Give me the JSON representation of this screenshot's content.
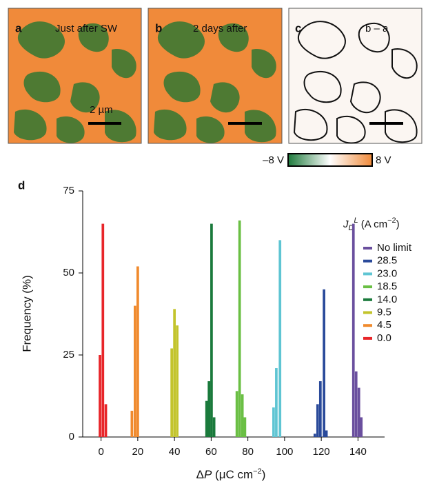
{
  "panels": [
    {
      "label": "a",
      "caption": "Just after SW",
      "scale_bar": "2 µm"
    },
    {
      "label": "b",
      "caption": "2 days after"
    },
    {
      "label": "c",
      "caption": "b – a"
    }
  ],
  "colorbar": {
    "min_label": "–8 V",
    "max_label": "8 V"
  },
  "chart_data": {
    "type": "bar",
    "panel_label": "d",
    "ylabel": "Frequency (%)",
    "xlabel": [
      "Δ",
      "P",
      " (μC cm",
      "−2",
      ")"
    ],
    "legend_title": [
      "J",
      "D",
      "L",
      " (A cm",
      "−2",
      ")"
    ],
    "legend": "right",
    "xlim": [
      -10,
      154.5
    ],
    "xticks": [
      0,
      20,
      40,
      60,
      80,
      100,
      120,
      140
    ],
    "ylim": [
      0,
      75
    ],
    "yticks": [
      0,
      25,
      50,
      75
    ],
    "series": [
      {
        "name": "No limit",
        "color": "#6a4f9e",
        "x": [
          137.5,
          139,
          140.5,
          141.8
        ],
        "values": [
          65,
          20,
          15,
          6
        ]
      },
      {
        "name": "28.5",
        "color": "#2a4a9a",
        "x": [
          116.5,
          118,
          119.5,
          121.5,
          122.8
        ],
        "values": [
          1,
          10,
          17,
          45,
          2
        ]
      },
      {
        "name": "23.0",
        "color": "#5fc5d3",
        "x": [
          94,
          95.5,
          97.5
        ],
        "values": [
          9,
          21,
          60
        ]
      },
      {
        "name": "18.5",
        "color": "#6abf44",
        "x": [
          74,
          75.5,
          77,
          78.4
        ],
        "values": [
          14,
          66,
          13,
          6
        ]
      },
      {
        "name": "14.0",
        "color": "#1a7a3c",
        "x": [
          57.5,
          58.8,
          60.2,
          61.6
        ],
        "values": [
          11,
          17,
          65,
          6
        ]
      },
      {
        "name": "9.5",
        "color": "#c3c42c",
        "x": [
          38.5,
          40,
          41.5
        ],
        "values": [
          27,
          39,
          34
        ]
      },
      {
        "name": "4.5",
        "color": "#f08a2d",
        "x": [
          16.8,
          18.5,
          20
        ],
        "values": [
          8,
          40,
          52
        ]
      },
      {
        "name": "0.0",
        "color": "#e8262a",
        "x": [
          -0.6,
          1,
          2.6
        ],
        "values": [
          25,
          65,
          10
        ]
      }
    ]
  }
}
